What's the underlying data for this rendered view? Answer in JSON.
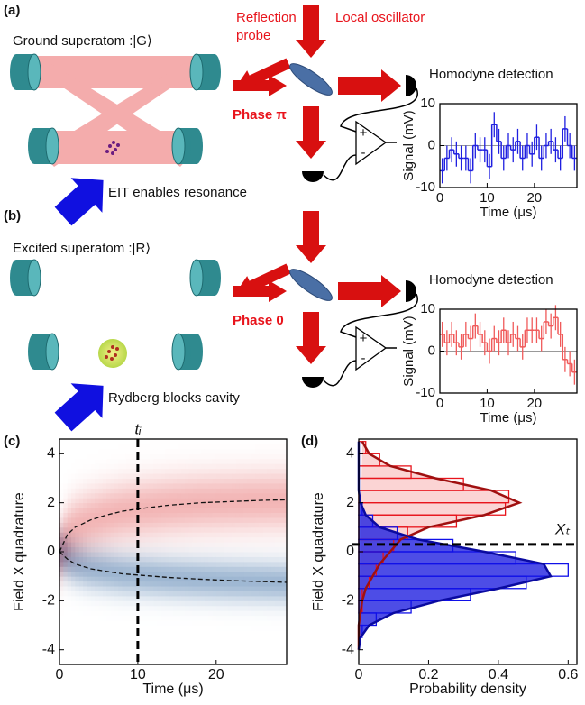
{
  "diagram": {
    "a": {
      "label": "(a)",
      "title": "Ground superatom :|G⟩",
      "reflection": [
        "Reflection",
        "probe"
      ],
      "lo": "Local oscillator",
      "homodyne": "Homodyne detection",
      "phase": "Phase π",
      "note": "EIT enables resonance",
      "plus": "+",
      "minus": "-"
    },
    "b": {
      "label": "(b)",
      "title": "Excited superatom :|R⟩",
      "homodyne": "Homodyne detection",
      "phase": "Phase 0",
      "note": "Rydberg blocks cavity",
      "plus": "+",
      "minus": "-"
    },
    "c": {
      "label": "(c)"
    },
    "d": {
      "label": "(d)"
    }
  },
  "chart_data": [
    {
      "type": "step",
      "xlabel": "Time (μs)",
      "ylabel": "Signal (mV)",
      "color": "#1f1fe0",
      "zero_line": true,
      "x": [
        0.5,
        1.5,
        2.5,
        3.5,
        4.5,
        5.5,
        6.5,
        7.5,
        8.5,
        9.5,
        10.5,
        11.5,
        12.5,
        13.5,
        14.5,
        15.5,
        16.5,
        17.5,
        18.5,
        19.5,
        20.5,
        21.5,
        22.5,
        23.5,
        24.5,
        25.5,
        26.5,
        27.5,
        28.5
      ],
      "values": [
        -6,
        -3,
        -1,
        -2,
        -3,
        -3,
        -6,
        0,
        -1,
        -1,
        -5,
        5,
        1,
        -3,
        0,
        -1,
        1,
        -3,
        0,
        -2,
        2,
        -3,
        0,
        1,
        -1,
        -3,
        4,
        0,
        -3
      ],
      "errors": [
        3,
        3,
        3,
        3,
        3,
        3,
        3,
        3,
        3,
        3,
        3,
        3,
        3,
        3,
        3,
        3,
        3,
        3,
        3,
        3,
        3,
        3,
        3,
        3,
        3,
        3,
        3,
        3,
        3
      ],
      "xlim": [
        0,
        29
      ],
      "ylim": [
        -10,
        10
      ],
      "xticks": [
        0,
        10,
        20
      ],
      "yticks": [
        -10,
        0,
        10
      ]
    },
    {
      "type": "step",
      "xlabel": "Time (μs)",
      "ylabel": "Signal (mV)",
      "color": "#f05a5a",
      "zero_line": true,
      "x": [
        0.5,
        1.5,
        2.5,
        3.5,
        4.5,
        5.5,
        6.5,
        7.5,
        8.5,
        9.5,
        10.5,
        11.5,
        12.5,
        13.5,
        14.5,
        15.5,
        16.5,
        17.5,
        18.5,
        19.5,
        20.5,
        21.5,
        22.5,
        23.5,
        24.5,
        25.5,
        26.5,
        27.5,
        28.5
      ],
      "values": [
        4,
        2,
        4,
        2,
        1,
        4,
        3,
        6,
        4,
        2,
        0,
        3,
        2,
        5,
        2,
        4,
        3,
        1,
        5,
        5,
        5,
        3,
        7,
        6,
        8,
        4,
        -2,
        -3,
        -5
      ],
      "errors": [
        3,
        3,
        3,
        3,
        3,
        3,
        3,
        3,
        3,
        3,
        3,
        3,
        3,
        3,
        3,
        3,
        3,
        3,
        3,
        3,
        3,
        3,
        3,
        3,
        3,
        3,
        3,
        3,
        3
      ],
      "xlim": [
        0,
        29
      ],
      "ylim": [
        -10,
        10
      ],
      "xticks": [
        0,
        10,
        20
      ],
      "yticks": [
        -10,
        0,
        10
      ]
    },
    {
      "type": "heatline",
      "xlabel": "Time (μs)",
      "ylabel": "Field X quadrature",
      "x": [
        0,
        1,
        2,
        4,
        6,
        8,
        10,
        14,
        18,
        22,
        26,
        29
      ],
      "series": [
        {
          "color": "#e05050",
          "values": [
            0,
            0.7,
            1.0,
            1.3,
            1.5,
            1.65,
            1.75,
            1.9,
            2.0,
            2.05,
            2.1,
            2.12
          ]
        },
        {
          "color": "#3a70b0",
          "values": [
            0,
            -0.3,
            -0.5,
            -0.7,
            -0.8,
            -0.9,
            -0.95,
            -1.05,
            -1.12,
            -1.18,
            -1.22,
            -1.25
          ]
        }
      ],
      "vline": {
        "value": 10,
        "label": "tᵢ"
      },
      "xlim": [
        0,
        29
      ],
      "ylim": [
        -4.6,
        4.6
      ],
      "xticks": [
        0,
        10,
        20
      ],
      "yticks": [
        -4,
        -2,
        0,
        2,
        4
      ]
    },
    {
      "type": "histogram_h",
      "xlabel": "Probability density",
      "ylabel": "Field X quadrature",
      "bins": [
        -4,
        -3.5,
        -3,
        -2.5,
        -2,
        -1.5,
        -1,
        -0.5,
        0,
        0.5,
        1,
        1.5,
        2,
        2.5,
        3,
        3.5,
        4,
        4.5
      ],
      "series": [
        {
          "color": "#e8141c",
          "fill": "#f7a0a0",
          "line": "#a01010",
          "counts": [
            0,
            0,
            0,
            0.01,
            0.01,
            0.03,
            0.05,
            0.07,
            0.1,
            0.14,
            0.28,
            0.42,
            0.43,
            0.3,
            0.15,
            0.06,
            0.02
          ],
          "fit": [
            0,
            0,
            0,
            0.005,
            0.01,
            0.02,
            0.04,
            0.06,
            0.09,
            0.12,
            0.2,
            0.36,
            0.46,
            0.38,
            0.22,
            0.09,
            0.03,
            0.01
          ]
        },
        {
          "color": "#1010e8",
          "fill": "#2020e0",
          "line": "#0a0aa0",
          "counts": [
            0,
            0.01,
            0.05,
            0.15,
            0.32,
            0.48,
            0.6,
            0.45,
            0.27,
            0.11,
            0.04,
            0.01,
            0,
            0,
            0,
            0,
            0
          ],
          "fit": [
            0,
            0.005,
            0.03,
            0.1,
            0.23,
            0.4,
            0.55,
            0.53,
            0.36,
            0.17,
            0.06,
            0.02,
            0.005,
            0,
            0,
            0,
            0,
            0
          ]
        }
      ],
      "fit_y": [
        -4,
        -3.5,
        -3,
        -2.5,
        -2,
        -1.5,
        -1,
        -0.5,
        0,
        0.5,
        1,
        1.5,
        2,
        2.5,
        3,
        3.5,
        4,
        4.5
      ],
      "threshold": {
        "value": 0.3,
        "label": "Xₜ"
      },
      "xlim": [
        0,
        0.625
      ],
      "ylim": [
        -4.6,
        4.6
      ],
      "xticks": [
        0,
        0.2,
        0.4,
        0.6
      ],
      "yticks": [
        -4,
        -2,
        0,
        2,
        4
      ]
    }
  ]
}
